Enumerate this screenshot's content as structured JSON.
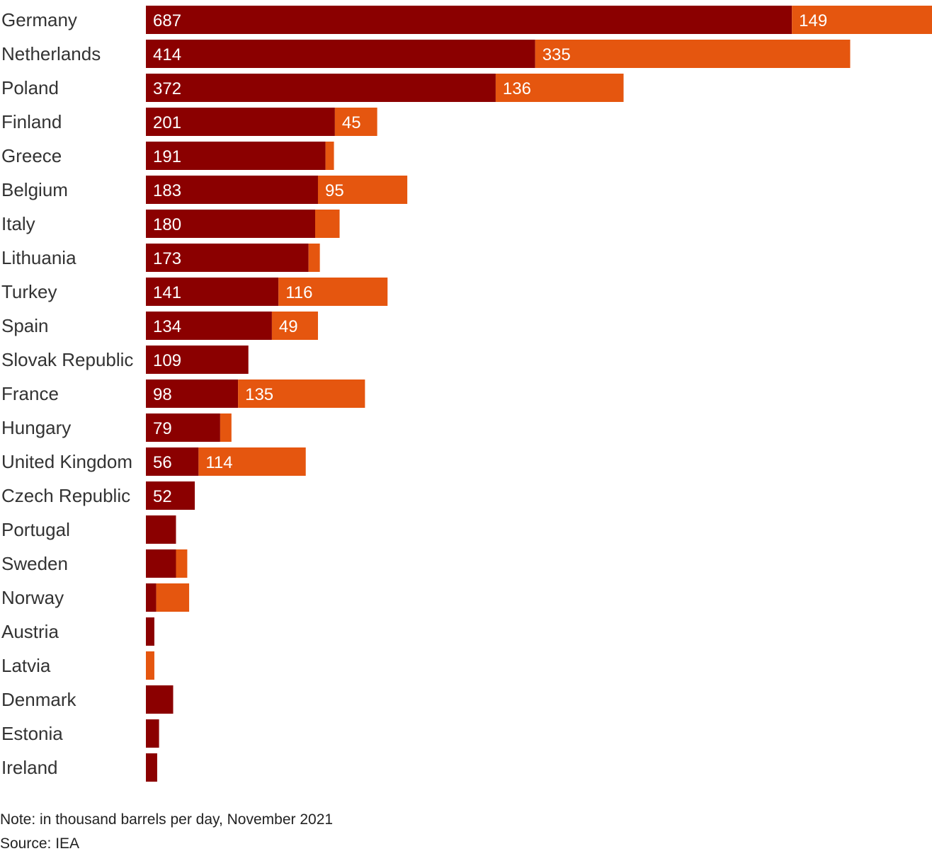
{
  "chart_data": {
    "type": "bar",
    "orientation": "horizontal",
    "stacked": true,
    "categories": [
      "Germany",
      "Netherlands",
      "Poland",
      "Finland",
      "Greece",
      "Belgium",
      "Italy",
      "Lithuania",
      "Turkey",
      "Spain",
      "Slovak Republic",
      "France",
      "Hungary",
      "United Kingdom",
      "Czech Republic",
      "Portugal",
      "Sweden",
      "Norway",
      "Austria",
      "Latvia",
      "Denmark",
      "Estonia",
      "Ireland"
    ],
    "series": [
      {
        "color": "#8b0000",
        "values": [
          687,
          414,
          372,
          201,
          191,
          183,
          180,
          173,
          141,
          134,
          109,
          98,
          79,
          56,
          52,
          32,
          32,
          11,
          9,
          0,
          29,
          14,
          12
        ],
        "labels": [
          "687",
          "414",
          "372",
          "201",
          "191",
          "183",
          "180",
          "173",
          "141",
          "134",
          "109",
          "98",
          "79",
          "56",
          "52",
          "",
          "",
          "",
          "",
          "",
          "",
          "",
          ""
        ]
      },
      {
        "color": "#e5560f",
        "values": [
          149,
          335,
          136,
          45,
          9,
          95,
          26,
          12,
          116,
          49,
          0,
          135,
          12,
          114,
          0,
          0,
          12,
          35,
          0,
          9,
          0,
          0,
          0
        ],
        "labels": [
          "149",
          "335",
          "136",
          "45",
          "",
          "95",
          "",
          "",
          "116",
          "49",
          "",
          "135",
          "",
          "114",
          "",
          "",
          "",
          "",
          "",
          "",
          "",
          "",
          ""
        ]
      }
    ],
    "xlim": [
      0,
      836
    ],
    "grid": false,
    "legend": "none"
  },
  "footer": {
    "note": "Note: in thousand barrels per day, November 2021",
    "source": "Source: IEA"
  }
}
